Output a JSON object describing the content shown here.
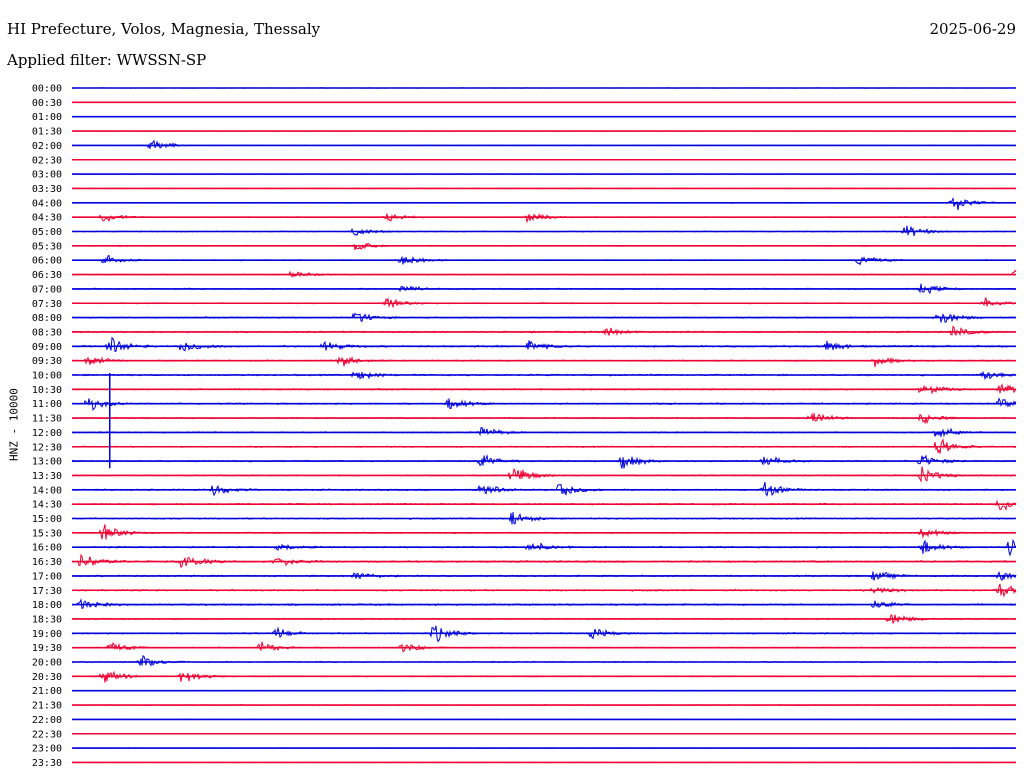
{
  "header": {
    "station": "HI Prefecture, Volos, Magnesia, Thessaly",
    "date": "2025-06-29",
    "filter": "Applied filter: WWSSN-SP"
  },
  "chart_data": {
    "type": "line",
    "ylabel": "HNZ - 10000",
    "colors": {
      "odd_row": "#0000dd",
      "even_row": "#ee0033"
    },
    "rows": [
      "00:00",
      "00:30",
      "01:00",
      "01:30",
      "02:00",
      "02:30",
      "03:00",
      "03:30",
      "04:00",
      "04:30",
      "05:00",
      "05:30",
      "06:00",
      "06:30",
      "07:00",
      "07:30",
      "08:00",
      "08:30",
      "09:00",
      "09:30",
      "10:00",
      "10:30",
      "11:00",
      "11:30",
      "12:00",
      "12:30",
      "13:00",
      "13:30",
      "14:00",
      "14:30",
      "15:00",
      "15:30",
      "16:00",
      "16:30",
      "17:00",
      "17:30",
      "18:00",
      "18:30",
      "19:00",
      "19:30",
      "20:00",
      "20:30",
      "21:00",
      "21:30",
      "22:00",
      "22:30",
      "23:00",
      "23:30"
    ],
    "row_minutes": 30,
    "noise_level": [
      0.15,
      0.12,
      0.12,
      0.12,
      0.15,
      0.12,
      0.12,
      0.25,
      0.3,
      0.3,
      0.35,
      0.3,
      0.35,
      0.35,
      0.5,
      0.4,
      0.5,
      0.6,
      0.7,
      0.5,
      0.6,
      0.55,
      0.6,
      0.5,
      0.5,
      0.5,
      0.55,
      0.5,
      0.6,
      0.6,
      0.55,
      0.5,
      0.6,
      0.7,
      0.6,
      0.6,
      0.7,
      0.5,
      0.55,
      0.45,
      0.45,
      0.4,
      0.25,
      0.2,
      0.15,
      0.15,
      0.15,
      0.15
    ],
    "events": [
      {
        "row": 4,
        "minute": 2.5,
        "amp": 1.4
      },
      {
        "row": 8,
        "minute": 28,
        "amp": 1.6
      },
      {
        "row": 9,
        "minute": 1,
        "amp": 1.0
      },
      {
        "row": 9,
        "minute": 10,
        "amp": 1.0
      },
      {
        "row": 9,
        "minute": 14.5,
        "amp": 1.0
      },
      {
        "row": 10,
        "minute": 9,
        "amp": 1.0
      },
      {
        "row": 10,
        "minute": 26.5,
        "amp": 1.4
      },
      {
        "row": 11,
        "minute": 9,
        "amp": 1.0
      },
      {
        "row": 12,
        "minute": 1,
        "amp": 1.2
      },
      {
        "row": 12,
        "minute": 10.5,
        "amp": 1.0
      },
      {
        "row": 12,
        "minute": 25,
        "amp": 1.2
      },
      {
        "row": 13,
        "minute": 7,
        "amp": 0.8
      },
      {
        "row": 13,
        "minute": 30,
        "amp": 1.2
      },
      {
        "row": 14,
        "minute": 10.5,
        "amp": 0.8
      },
      {
        "row": 14,
        "minute": 27,
        "amp": 1.0
      },
      {
        "row": 15,
        "minute": 10,
        "amp": 0.8
      },
      {
        "row": 15,
        "minute": 29,
        "amp": 1.0
      },
      {
        "row": 16,
        "minute": 9,
        "amp": 1.2
      },
      {
        "row": 16,
        "minute": 27.5,
        "amp": 1.8
      },
      {
        "row": 17,
        "minute": 17,
        "amp": 0.8
      },
      {
        "row": 17,
        "minute": 28,
        "amp": 1.0
      },
      {
        "row": 18,
        "minute": 1.2,
        "amp": 1.6
      },
      {
        "row": 18,
        "minute": 3.5,
        "amp": 1.2
      },
      {
        "row": 18,
        "minute": 8,
        "amp": 1.0
      },
      {
        "row": 18,
        "minute": 14.5,
        "amp": 1.0
      },
      {
        "row": 18,
        "minute": 24,
        "amp": 1.0
      },
      {
        "row": 19,
        "minute": 0.5,
        "amp": 1.0
      },
      {
        "row": 19,
        "minute": 8.5,
        "amp": 1.2
      },
      {
        "row": 19,
        "minute": 25.5,
        "amp": 1.0
      },
      {
        "row": 20,
        "minute": 9,
        "amp": 1.0
      },
      {
        "row": 20,
        "minute": 29,
        "amp": 1.0
      },
      {
        "row": 21,
        "minute": 27,
        "amp": 1.4
      },
      {
        "row": 21,
        "minute": 29.5,
        "amp": 1.0
      },
      {
        "row": 22,
        "minute": 0.5,
        "amp": 1.4
      },
      {
        "row": 22,
        "minute": 12,
        "amp": 1.2
      },
      {
        "row": 22,
        "minute": 29.5,
        "amp": 1.0
      },
      {
        "row": 23,
        "minute": 23.5,
        "amp": 1.2
      },
      {
        "row": 23,
        "minute": 27,
        "amp": 1.0
      },
      {
        "row": 24,
        "minute": 13,
        "amp": 1.0
      },
      {
        "row": 24,
        "minute": 27.5,
        "amp": 1.2
      },
      {
        "row": 25,
        "minute": 27.5,
        "amp": 1.6
      },
      {
        "row": 26,
        "minute": 13,
        "amp": 1.2
      },
      {
        "row": 26,
        "minute": 17.5,
        "amp": 1.4
      },
      {
        "row": 26,
        "minute": 22,
        "amp": 1.0
      },
      {
        "row": 26,
        "minute": 27,
        "amp": 1.2
      },
      {
        "row": 27,
        "minute": 14,
        "amp": 1.8
      },
      {
        "row": 27,
        "minute": 27,
        "amp": 1.4
      },
      {
        "row": 28,
        "minute": 4.5,
        "amp": 1.0
      },
      {
        "row": 28,
        "minute": 13,
        "amp": 1.2
      },
      {
        "row": 28,
        "minute": 15.5,
        "amp": 1.6
      },
      {
        "row": 28,
        "minute": 22,
        "amp": 1.4
      },
      {
        "row": 29,
        "minute": 29.5,
        "amp": 1.4
      },
      {
        "row": 30,
        "minute": 14,
        "amp": 1.2
      },
      {
        "row": 31,
        "minute": 1,
        "amp": 1.4
      },
      {
        "row": 31,
        "minute": 27,
        "amp": 1.2
      },
      {
        "row": 32,
        "minute": 6.5,
        "amp": 1.0
      },
      {
        "row": 32,
        "minute": 14.5,
        "amp": 1.2
      },
      {
        "row": 32,
        "minute": 27,
        "amp": 1.4
      },
      {
        "row": 32,
        "minute": 29.8,
        "amp": 1.6
      },
      {
        "row": 33,
        "minute": 0.3,
        "amp": 1.4
      },
      {
        "row": 33,
        "minute": 3.5,
        "amp": 1.6
      },
      {
        "row": 33,
        "minute": 6.5,
        "amp": 1.0
      },
      {
        "row": 34,
        "minute": 9,
        "amp": 0.8
      },
      {
        "row": 34,
        "minute": 25.5,
        "amp": 1.0
      },
      {
        "row": 34,
        "minute": 29.5,
        "amp": 1.0
      },
      {
        "row": 35,
        "minute": 25.5,
        "amp": 0.8
      },
      {
        "row": 35,
        "minute": 29.5,
        "amp": 1.2
      },
      {
        "row": 36,
        "minute": 0.3,
        "amp": 1.0
      },
      {
        "row": 36,
        "minute": 25.5,
        "amp": 0.8
      },
      {
        "row": 37,
        "minute": 26,
        "amp": 1.2
      },
      {
        "row": 38,
        "minute": 6.5,
        "amp": 1.0
      },
      {
        "row": 38,
        "minute": 11.5,
        "amp": 1.6
      },
      {
        "row": 38,
        "minute": 16.5,
        "amp": 1.2
      },
      {
        "row": 39,
        "minute": 1.2,
        "amp": 1.0
      },
      {
        "row": 39,
        "minute": 6,
        "amp": 1.0
      },
      {
        "row": 39,
        "minute": 10.5,
        "amp": 1.0
      },
      {
        "row": 40,
        "minute": 2.2,
        "amp": 1.2
      },
      {
        "row": 41,
        "minute": 1,
        "amp": 1.4
      },
      {
        "row": 41,
        "minute": 3.5,
        "amp": 1.4
      }
    ],
    "spikes": [
      {
        "row": 20,
        "minute": 1.2,
        "height_rows": 6.5
      }
    ],
    "grid": false,
    "legend": "none"
  }
}
